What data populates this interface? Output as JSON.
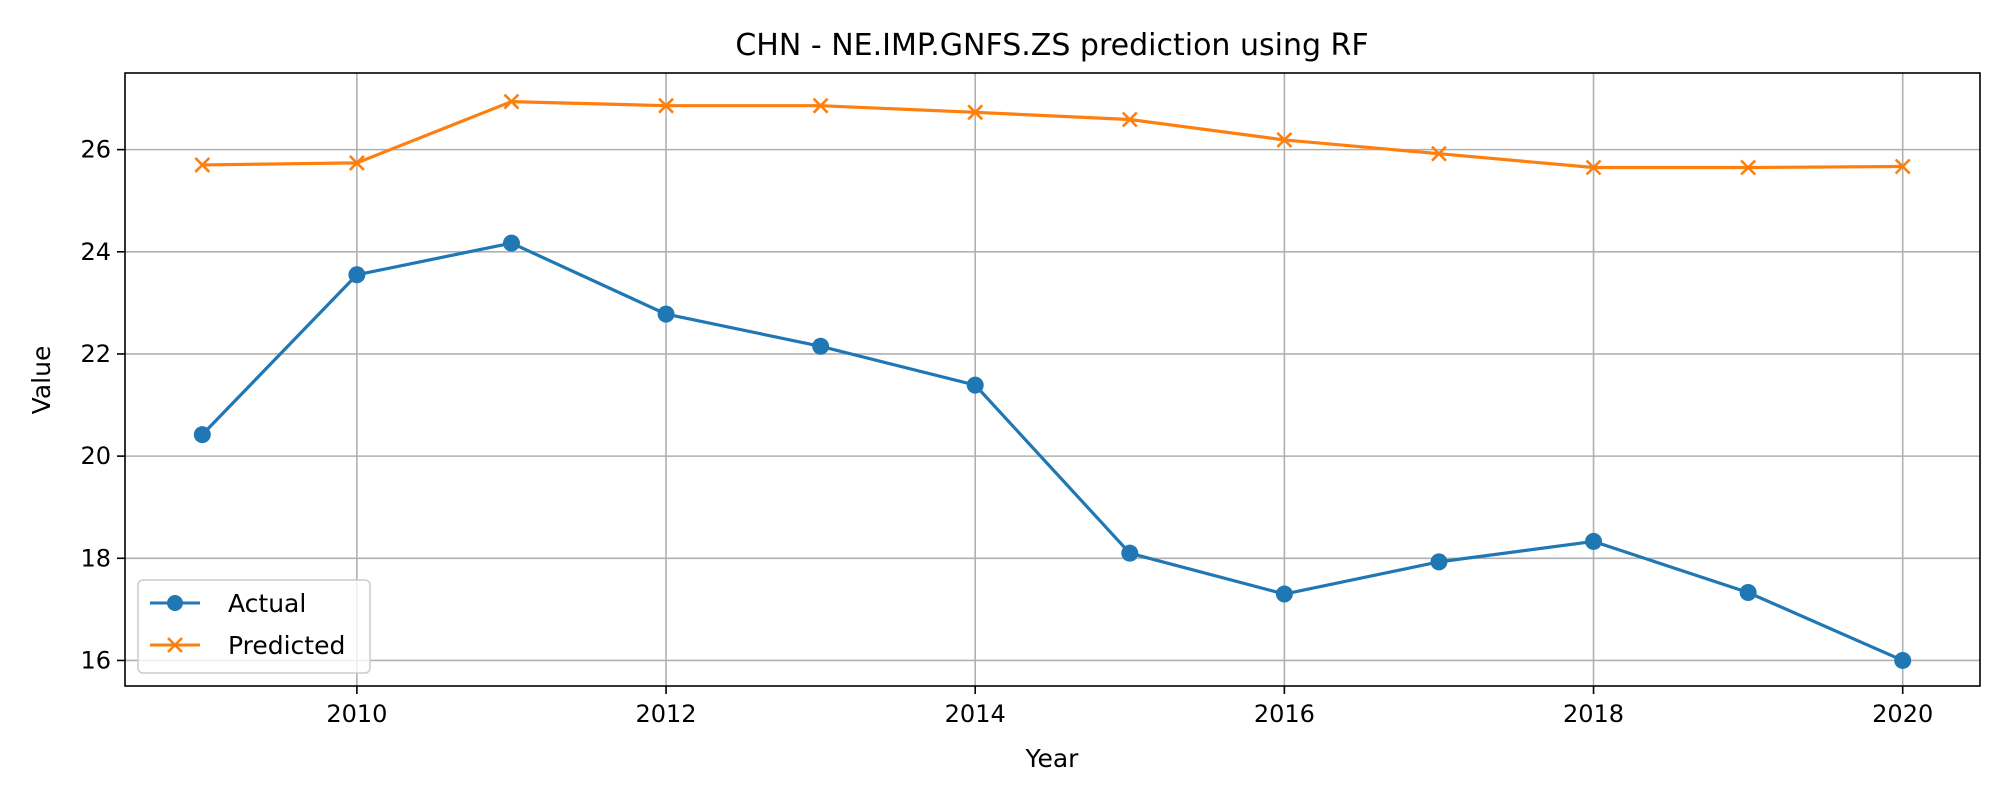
{
  "chart_data": {
    "type": "line",
    "title": "CHN - NE.IMP.GNFS.ZS prediction using RF",
    "xlabel": "Year",
    "ylabel": "Value",
    "xlim": [
      2008.5,
      2020.5
    ],
    "ylim": [
      15.5,
      27.5
    ],
    "xticks": [
      2010,
      2012,
      2014,
      2016,
      2018,
      2020
    ],
    "yticks": [
      16,
      18,
      20,
      22,
      24,
      26
    ],
    "grid": true,
    "legend_position": "lower-left",
    "x": [
      2009,
      2010,
      2011,
      2012,
      2013,
      2014,
      2015,
      2016,
      2017,
      2018,
      2019,
      2020
    ],
    "series": [
      {
        "name": "Actual",
        "color": "#1f77b4",
        "marker": "circle",
        "values": [
          20.42,
          23.55,
          24.17,
          22.78,
          22.15,
          21.39,
          18.1,
          17.3,
          17.93,
          18.33,
          17.33,
          16.0
        ]
      },
      {
        "name": "Predicted",
        "color": "#ff7f0e",
        "marker": "x",
        "values": [
          25.7,
          25.74,
          26.94,
          26.86,
          26.86,
          26.73,
          26.59,
          26.19,
          25.92,
          25.65,
          25.65,
          25.67
        ]
      }
    ]
  }
}
